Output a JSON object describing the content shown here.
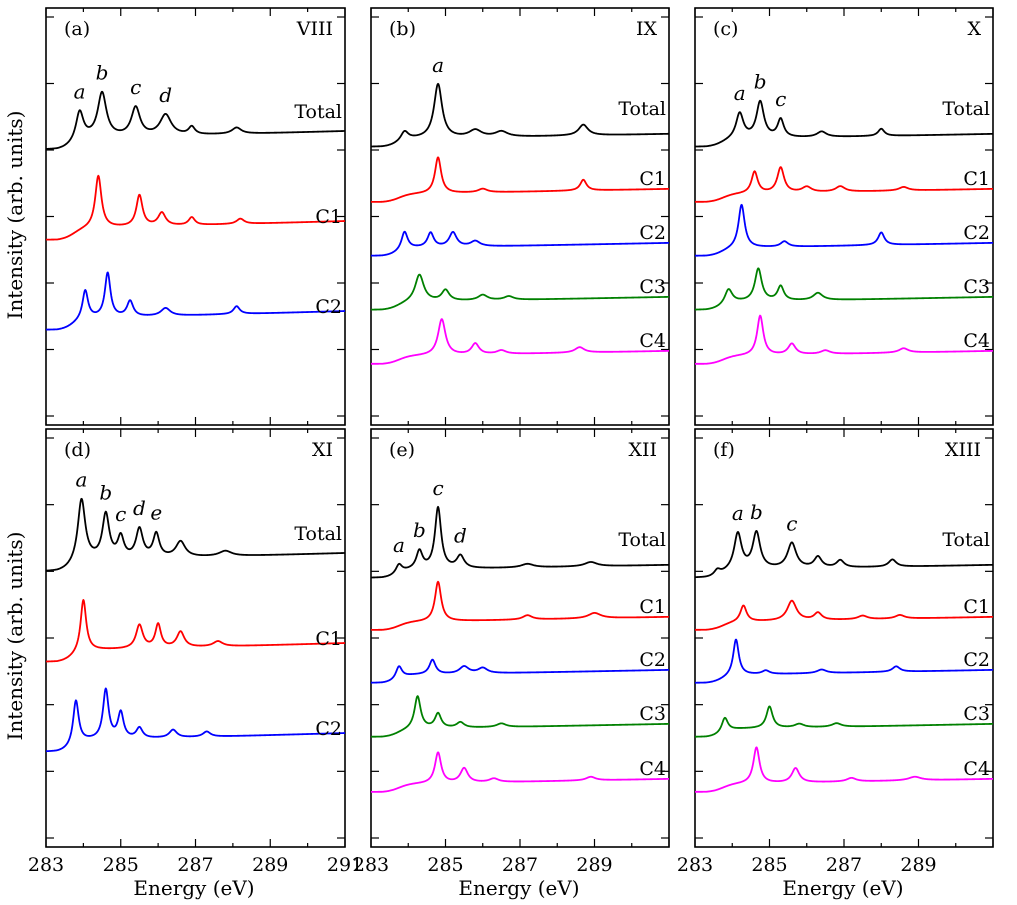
{
  "chart_data": {
    "type": "line",
    "layout": "2 rows x 3 columns, shared axes",
    "ylabel": "Intensity (arb. units)",
    "xlabel": "Energy (eV)",
    "xlim": [
      283,
      291
    ],
    "xticks": [
      283,
      285,
      287,
      289,
      291
    ],
    "xtick_labels": [
      "283",
      "285",
      "287",
      "289",
      "291"
    ],
    "y_tick_labels_shown": false,
    "grid": false,
    "colors": {
      "Total": "#000000",
      "C1": "#ff0000",
      "C2": "#0000ff",
      "C3": "#008000",
      "C4": "#ff00ff"
    },
    "panels": [
      {
        "label": "(a)",
        "structure": "VIII",
        "series": [
          {
            "name": "Total",
            "peaks": [
              [
                283.9,
                0.55,
                0.12
              ],
              [
                284.5,
                0.85,
                0.14
              ],
              [
                285.4,
                0.55,
                0.14
              ],
              [
                286.2,
                0.4,
                0.18
              ],
              [
                286.9,
                0.15,
                0.1
              ],
              [
                288.1,
                0.12,
                0.15
              ]
            ]
          },
          {
            "name": "C1",
            "peaks": [
              [
                284.4,
                1.0,
                0.1
              ],
              [
                285.5,
                0.6,
                0.1
              ],
              [
                286.1,
                0.25,
                0.12
              ],
              [
                286.9,
                0.15,
                0.1
              ],
              [
                288.2,
                0.1,
                0.12
              ]
            ]
          },
          {
            "name": "C2",
            "peaks": [
              [
                284.05,
                0.55,
                0.09
              ],
              [
                284.65,
                0.85,
                0.09
              ],
              [
                285.25,
                0.3,
                0.1
              ],
              [
                286.2,
                0.15,
                0.15
              ],
              [
                288.1,
                0.15,
                0.1
              ]
            ]
          }
        ],
        "peak_labels": [
          {
            "text": "a",
            "x": 283.9
          },
          {
            "text": "b",
            "x": 284.5
          },
          {
            "text": "c",
            "x": 285.4
          },
          {
            "text": "d",
            "x": 286.2
          }
        ]
      },
      {
        "label": "(b)",
        "structure": "IX",
        "series": [
          {
            "name": "Total",
            "peaks": [
              [
                283.9,
                0.25,
                0.12
              ],
              [
                284.8,
                1.5,
                0.13
              ],
              [
                285.8,
                0.2,
                0.2
              ],
              [
                286.5,
                0.15,
                0.2
              ],
              [
                288.7,
                0.3,
                0.15
              ]
            ]
          },
          {
            "name": "C1",
            "peaks": [
              [
                284.8,
                1.0,
                0.1
              ],
              [
                286.0,
                0.1,
                0.15
              ],
              [
                288.7,
                0.3,
                0.1
              ]
            ]
          },
          {
            "name": "C2",
            "peaks": [
              [
                283.9,
                0.5,
                0.1
              ],
              [
                284.6,
                0.4,
                0.1
              ],
              [
                285.2,
                0.4,
                0.12
              ],
              [
                285.8,
                0.15,
                0.15
              ]
            ]
          },
          {
            "name": "C3",
            "peaks": [
              [
                284.3,
                0.75,
                0.14
              ],
              [
                285.0,
                0.3,
                0.12
              ],
              [
                286.0,
                0.15,
                0.15
              ],
              [
                286.7,
                0.1,
                0.15
              ]
            ]
          },
          {
            "name": "C4",
            "peaks": [
              [
                284.9,
                1.0,
                0.12
              ],
              [
                285.8,
                0.3,
                0.12
              ],
              [
                286.5,
                0.1,
                0.15
              ],
              [
                288.6,
                0.15,
                0.15
              ]
            ]
          }
        ],
        "peak_labels": [
          {
            "text": "a",
            "x": 284.8
          }
        ]
      },
      {
        "label": "(c)",
        "structure": "X",
        "series": [
          {
            "name": "Total",
            "peaks": [
              [
                284.2,
                0.7,
                0.12
              ],
              [
                284.75,
                1.0,
                0.12
              ],
              [
                285.3,
                0.5,
                0.1
              ],
              [
                286.4,
                0.15,
                0.15
              ],
              [
                288.0,
                0.2,
                0.1
              ]
            ]
          },
          {
            "name": "C1",
            "peaks": [
              [
                284.6,
                0.6,
                0.1
              ],
              [
                285.3,
                0.7,
                0.11
              ],
              [
                286.0,
                0.15,
                0.15
              ],
              [
                286.9,
                0.15,
                0.15
              ],
              [
                288.6,
                0.1,
                0.15
              ]
            ]
          },
          {
            "name": "C2",
            "peaks": [
              [
                284.25,
                1.2,
                0.1
              ],
              [
                285.4,
                0.15,
                0.12
              ],
              [
                288.0,
                0.35,
                0.1
              ]
            ]
          },
          {
            "name": "C3",
            "peaks": [
              [
                283.9,
                0.4,
                0.12
              ],
              [
                284.7,
                0.9,
                0.11
              ],
              [
                285.3,
                0.4,
                0.1
              ],
              [
                286.3,
                0.2,
                0.15
              ]
            ]
          },
          {
            "name": "C4",
            "peaks": [
              [
                284.75,
                1.1,
                0.1
              ],
              [
                285.6,
                0.3,
                0.12
              ],
              [
                286.5,
                0.1,
                0.15
              ],
              [
                288.6,
                0.12,
                0.15
              ]
            ]
          }
        ],
        "peak_labels": [
          {
            "text": "a",
            "x": 284.2
          },
          {
            "text": "b",
            "x": 284.75
          },
          {
            "text": "c",
            "x": 285.3
          }
        ]
      },
      {
        "label": "(d)",
        "structure": "XI",
        "series": [
          {
            "name": "Total",
            "peaks": [
              [
                283.95,
                1.2,
                0.12
              ],
              [
                284.6,
                0.85,
                0.11
              ],
              [
                285.0,
                0.4,
                0.1
              ],
              [
                285.5,
                0.55,
                0.11
              ],
              [
                285.95,
                0.45,
                0.1
              ],
              [
                286.6,
                0.3,
                0.15
              ],
              [
                287.8,
                0.1,
                0.2
              ]
            ]
          },
          {
            "name": "C1",
            "peaks": [
              [
                284.0,
                1.0,
                0.09
              ],
              [
                285.5,
                0.45,
                0.11
              ],
              [
                286.0,
                0.45,
                0.09
              ],
              [
                286.6,
                0.3,
                0.12
              ],
              [
                287.6,
                0.1,
                0.15
              ]
            ]
          },
          {
            "name": "C2",
            "peaks": [
              [
                283.8,
                0.85,
                0.09
              ],
              [
                284.6,
                0.95,
                0.09
              ],
              [
                285.0,
                0.5,
                0.09
              ],
              [
                285.5,
                0.2,
                0.1
              ],
              [
                286.4,
                0.15,
                0.12
              ],
              [
                287.3,
                0.1,
                0.12
              ]
            ]
          }
        ],
        "peak_labels": [
          {
            "text": "a",
            "x": 283.95
          },
          {
            "text": "b",
            "x": 284.6
          },
          {
            "text": "c",
            "x": 285.0
          },
          {
            "text": "d",
            "x": 285.5
          },
          {
            "text": "e",
            "x": 285.95
          }
        ]
      },
      {
        "label": "(e)",
        "structure": "XII",
        "series": [
          {
            "name": "Total",
            "peaks": [
              [
                283.75,
                0.25,
                0.1
              ],
              [
                284.3,
                0.5,
                0.1
              ],
              [
                284.8,
                1.7,
                0.1
              ],
              [
                285.4,
                0.35,
                0.12
              ],
              [
                287.2,
                0.1,
                0.2
              ],
              [
                288.9,
                0.12,
                0.2
              ]
            ]
          },
          {
            "name": "C1",
            "peaks": [
              [
                284.8,
                1.1,
                0.1
              ],
              [
                287.2,
                0.12,
                0.15
              ],
              [
                289.0,
                0.15,
                0.2
              ]
            ]
          },
          {
            "name": "C2",
            "peaks": [
              [
                283.75,
                0.35,
                0.1
              ],
              [
                284.65,
                0.4,
                0.1
              ],
              [
                285.5,
                0.2,
                0.15
              ],
              [
                286.0,
                0.15,
                0.15
              ]
            ]
          },
          {
            "name": "C3",
            "peaks": [
              [
                284.25,
                0.9,
                0.1
              ],
              [
                284.8,
                0.4,
                0.1
              ],
              [
                285.4,
                0.15,
                0.12
              ],
              [
                286.5,
                0.1,
                0.15
              ]
            ]
          },
          {
            "name": "C4",
            "peaks": [
              [
                284.8,
                0.85,
                0.1
              ],
              [
                285.5,
                0.4,
                0.12
              ],
              [
                286.3,
                0.1,
                0.15
              ],
              [
                288.9,
                0.1,
                0.15
              ]
            ]
          }
        ],
        "peak_labels": [
          {
            "text": "a",
            "x": 283.75
          },
          {
            "text": "b",
            "x": 284.3
          },
          {
            "text": "c",
            "x": 284.8
          },
          {
            "text": "d",
            "x": 285.4
          }
        ]
      },
      {
        "label": "(f)",
        "structure": "XIII",
        "series": [
          {
            "name": "Total",
            "peaks": [
              [
                283.6,
                0.15,
                0.1
              ],
              [
                284.15,
                1.0,
                0.12
              ],
              [
                284.65,
                1.0,
                0.12
              ],
              [
                285.6,
                0.7,
                0.14
              ],
              [
                286.3,
                0.3,
                0.12
              ],
              [
                286.9,
                0.2,
                0.12
              ],
              [
                288.3,
                0.2,
                0.12
              ]
            ]
          },
          {
            "name": "C1",
            "peaks": [
              [
                284.3,
                0.45,
                0.1
              ],
              [
                285.6,
                0.55,
                0.15
              ],
              [
                286.3,
                0.2,
                0.12
              ],
              [
                287.5,
                0.1,
                0.15
              ],
              [
                288.5,
                0.1,
                0.15
              ]
            ]
          },
          {
            "name": "C2",
            "peaks": [
              [
                284.1,
                1.0,
                0.09
              ],
              [
                284.9,
                0.1,
                0.12
              ],
              [
                286.4,
                0.1,
                0.15
              ],
              [
                288.4,
                0.15,
                0.12
              ]
            ]
          },
          {
            "name": "C3",
            "peaks": [
              [
                283.8,
                0.4,
                0.1
              ],
              [
                285.0,
                0.6,
                0.1
              ],
              [
                285.8,
                0.1,
                0.15
              ],
              [
                286.8,
                0.1,
                0.15
              ]
            ]
          },
          {
            "name": "C4",
            "peaks": [
              [
                284.65,
                1.0,
                0.1
              ],
              [
                285.7,
                0.4,
                0.12
              ],
              [
                287.2,
                0.1,
                0.15
              ],
              [
                288.9,
                0.1,
                0.2
              ]
            ]
          }
        ],
        "peak_labels": [
          {
            "text": "a",
            "x": 284.15
          },
          {
            "text": "b",
            "x": 284.65
          },
          {
            "text": "c",
            "x": 285.6
          }
        ]
      }
    ]
  }
}
